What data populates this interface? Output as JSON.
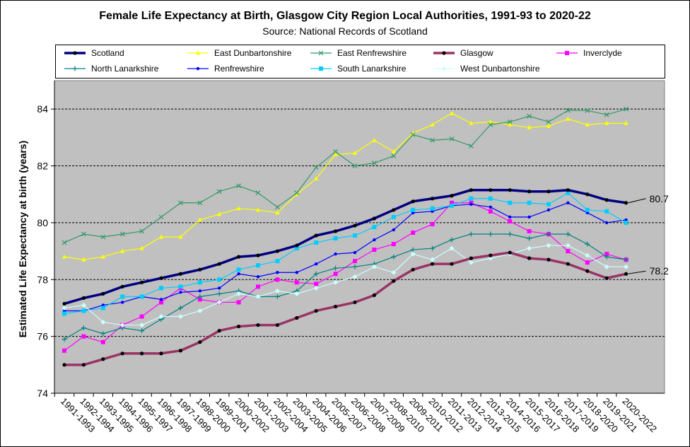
{
  "title": "Female Life Expectancy at Birth, Glasgow City Region Local Authorities, 1991-93 to 2020-22",
  "subtitle": "Source: National Records of Scotland",
  "chart_data": {
    "type": "line",
    "title": "Female Life Expectancy at Birth, Glasgow City Region Local Authorities, 1991-93 to 2020-22",
    "subtitle": "Source: National Records of Scotland",
    "ylabel": "Estimated Life Expectancy at birth (years)",
    "xlabel": "",
    "ylim": [
      74,
      85
    ],
    "yticks": [
      74,
      76,
      78,
      80,
      82,
      84
    ],
    "grid": "horizontal dashed",
    "legend_position": "top",
    "plot_background": "#c0c0c0",
    "categories": [
      "1991-1993",
      "1992-1994",
      "1993-1995",
      "1994-1996",
      "1995-1997",
      "1996-1998",
      "1997-1999",
      "1998-2000",
      "1999-2001",
      "2000-2002",
      "2001-2003",
      "2002-2004",
      "2003-2005",
      "2004-2006",
      "2005-2007",
      "2006-2008",
      "2007-2009",
      "2008-2010",
      "2009-2011",
      "2010-2012",
      "2011-2013",
      "2012-2014",
      "2013-2015",
      "2014-2016",
      "2015-2017",
      "2016-2018",
      "2017-2019",
      "2018-2020",
      "2019-2021",
      "2020-2022"
    ],
    "series": [
      {
        "name": "Scotland",
        "color": "#000080",
        "marker": "dot",
        "width": 3.5,
        "values": [
          77.15,
          77.35,
          77.5,
          77.75,
          77.9,
          78.05,
          78.2,
          78.35,
          78.55,
          78.8,
          78.85,
          79.0,
          79.2,
          79.55,
          79.7,
          79.9,
          80.15,
          80.45,
          80.75,
          80.85,
          80.95,
          81.15,
          81.15,
          81.15,
          81.1,
          81.1,
          81.15,
          81.0,
          80.8,
          80.7
        ]
      },
      {
        "name": "East Dunbartonshire",
        "color": "#ffff00",
        "marker": "triangle",
        "width": 1.2,
        "values": [
          78.8,
          78.7,
          78.8,
          79.0,
          79.1,
          79.5,
          79.5,
          80.1,
          80.3,
          80.5,
          80.45,
          80.35,
          81.0,
          81.55,
          82.4,
          82.45,
          82.9,
          82.5,
          83.15,
          83.45,
          83.85,
          83.5,
          83.55,
          83.45,
          83.35,
          83.4,
          83.65,
          83.45,
          83.5,
          83.5
        ]
      },
      {
        "name": "East Renfrewshire",
        "color": "#339966",
        "marker": "x",
        "width": 1.2,
        "values": [
          79.3,
          79.6,
          79.5,
          79.6,
          79.7,
          80.2,
          80.7,
          80.7,
          81.1,
          81.3,
          81.05,
          80.55,
          81.05,
          81.95,
          82.5,
          82.0,
          82.1,
          82.35,
          83.1,
          82.9,
          82.95,
          82.7,
          83.45,
          83.55,
          83.75,
          83.55,
          83.95,
          83.95,
          83.8,
          84.0
        ]
      },
      {
        "name": "Glasgow",
        "color": "#993366",
        "marker": "dot",
        "width": 3.5,
        "values": [
          75.0,
          75.0,
          75.2,
          75.4,
          75.4,
          75.4,
          75.5,
          75.8,
          76.2,
          76.35,
          76.4,
          76.4,
          76.65,
          76.9,
          77.05,
          77.2,
          77.45,
          77.95,
          78.35,
          78.55,
          78.55,
          78.75,
          78.85,
          78.95,
          78.75,
          78.7,
          78.55,
          78.3,
          78.05,
          78.2
        ]
      },
      {
        "name": "Inverclyde",
        "color": "#ff00ff",
        "marker": "square",
        "width": 1.2,
        "values": [
          75.5,
          76.0,
          75.8,
          76.4,
          76.7,
          77.2,
          77.7,
          77.3,
          77.2,
          77.2,
          77.75,
          78.0,
          77.9,
          77.85,
          78.2,
          78.65,
          79.05,
          79.25,
          79.65,
          79.95,
          80.7,
          80.7,
          80.4,
          80.05,
          79.7,
          79.6,
          79.0,
          78.6,
          78.9,
          78.7
        ]
      },
      {
        "name": "North Lanarkshire",
        "color": "#008080",
        "marker": "plus",
        "width": 1.2,
        "values": [
          75.9,
          76.3,
          76.1,
          76.3,
          76.2,
          76.6,
          77.0,
          77.4,
          77.5,
          77.6,
          77.4,
          77.4,
          77.6,
          78.2,
          78.4,
          78.45,
          78.55,
          78.8,
          79.05,
          79.1,
          79.4,
          79.6,
          79.6,
          79.6,
          79.45,
          79.6,
          79.6,
          79.25,
          78.8,
          78.7
        ]
      },
      {
        "name": "Renfrewshire",
        "color": "#0000ff",
        "marker": "dot",
        "width": 1.2,
        "values": [
          76.9,
          76.9,
          77.1,
          77.2,
          77.4,
          77.3,
          77.55,
          77.6,
          77.7,
          78.2,
          78.1,
          78.25,
          78.25,
          78.55,
          78.9,
          78.95,
          79.4,
          79.75,
          80.35,
          80.4,
          80.6,
          80.65,
          80.55,
          80.2,
          80.2,
          80.45,
          80.7,
          80.35,
          80.0,
          80.1
        ]
      },
      {
        "name": "South Lanarkshire",
        "color": "#00ccff",
        "marker": "square",
        "width": 1.2,
        "values": [
          76.8,
          76.9,
          77.0,
          77.4,
          77.4,
          77.7,
          77.75,
          77.9,
          78.0,
          78.35,
          78.5,
          78.65,
          79.1,
          79.3,
          79.45,
          79.55,
          79.85,
          80.2,
          80.45,
          80.5,
          80.6,
          80.85,
          80.85,
          80.7,
          80.7,
          80.65,
          81.05,
          80.45,
          80.4,
          80.0
        ]
      },
      {
        "name": "West Dunbartonshire",
        "color": "#ccffff",
        "marker": "diamond",
        "width": 1.2,
        "values": [
          77.0,
          77.1,
          76.5,
          76.4,
          76.4,
          76.7,
          76.7,
          76.9,
          77.2,
          77.5,
          77.4,
          77.6,
          77.5,
          77.7,
          77.9,
          78.1,
          78.45,
          78.25,
          78.9,
          78.7,
          79.1,
          78.6,
          78.75,
          78.9,
          79.1,
          79.2,
          79.2,
          78.85,
          78.45,
          78.45
        ]
      }
    ],
    "annotations": [
      {
        "series": "Scotland",
        "text": "80.7"
      },
      {
        "series": "Glasgow",
        "text": "78.2"
      }
    ]
  }
}
